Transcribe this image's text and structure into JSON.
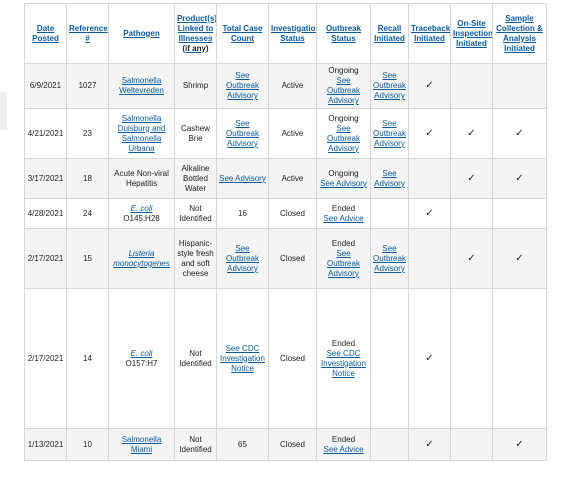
{
  "headers": [
    {
      "label": "Date Posted"
    },
    {
      "label": "Reference #"
    },
    {
      "label": "Pathogen"
    },
    {
      "label": "Product(s) Linked to Illnesses",
      "sub": "(if any)"
    },
    {
      "label": "Total Case Count"
    },
    {
      "label": "Investigation Status"
    },
    {
      "label": "Outbreak Status"
    },
    {
      "label": "Recall Initiated"
    },
    {
      "label": "Traceback Initiated"
    },
    {
      "label": "On-Site Inspection Initiated"
    },
    {
      "label": "Sample Collection & Analysis Initiated"
    }
  ],
  "check_mark": "✓",
  "rows": [
    {
      "date": "6/9/2021",
      "ref": "1027",
      "pathogen": "Salmonella Weltevreden",
      "product": "Shrimp",
      "case_count": "See Outbreak Advisory",
      "investigation": "Active",
      "outbreak_status_text": "Ongoing",
      "outbreak_status_link": "See Outbreak Advisory",
      "recall": "See Outbreak Advisory",
      "traceback": true,
      "onsite": false,
      "sample": false
    },
    {
      "date": "4/21/2021",
      "ref": "23",
      "pathogen": "Salmonella Duisburg and Salmonella Urbana",
      "product": "Cashew Brie",
      "case_count": "See Outbreak Advisory",
      "investigation": "Active",
      "outbreak_status_text": "Ongoing",
      "outbreak_status_link": "See Outbreak Advisory",
      "recall": "See Outbreak Advisory",
      "traceback": true,
      "onsite": true,
      "sample": true
    },
    {
      "date": "3/17/2021",
      "ref": "18",
      "pathogen": "Acute Non-viral Hepatitis",
      "product": "Alkaline Bottled Water",
      "case_count": "See Advisory",
      "investigation": "Active",
      "outbreak_status_text": "Ongoing",
      "outbreak_status_link": "See Advisory",
      "recall": "See Advisory",
      "traceback": false,
      "onsite": true,
      "sample": true
    },
    {
      "date": "4/28/2021",
      "ref": "24",
      "pathogen_italic": "E. coli",
      "pathogen_rest": "O145:H28",
      "product": "Not Identified",
      "case_count": "16",
      "investigation": "Closed",
      "outbreak_status_text": "Ended",
      "outbreak_status_link": "See Advice",
      "recall": "",
      "traceback": true,
      "onsite": false,
      "sample": false
    },
    {
      "date": "2/17/2021",
      "ref": "15",
      "pathogen_italic": "Listeria monocytogenes",
      "product": "Hispanic-style fresh and soft cheese",
      "case_count": "See Outbreak Advisory",
      "investigation": "Closed",
      "outbreak_status_text": "Ended",
      "outbreak_status_link": "See Outbreak Advisory",
      "recall": "See Outbreak Advisory",
      "traceback": false,
      "onsite": true,
      "sample": true
    },
    {
      "date": "2/17/2021",
      "ref": "14",
      "pathogen_italic": "E. coli",
      "pathogen_rest": "O157:H7",
      "product": "Not Identified",
      "case_count": "See CDC Investigation Notice",
      "investigation": "Closed",
      "outbreak_status_text": "Ended",
      "outbreak_status_link": "See CDC Investigation Notice",
      "recall": "",
      "traceback": true,
      "onsite": false,
      "sample": false
    },
    {
      "date": "1/13/2021",
      "ref": "10",
      "pathogen": "Salmonella Miami",
      "product": "Not Identified",
      "case_count": "65",
      "investigation": "Closed",
      "outbreak_status_text": "Ended",
      "outbreak_status_link": "See Advice",
      "recall": "",
      "traceback": true,
      "onsite": false,
      "sample": true
    }
  ]
}
